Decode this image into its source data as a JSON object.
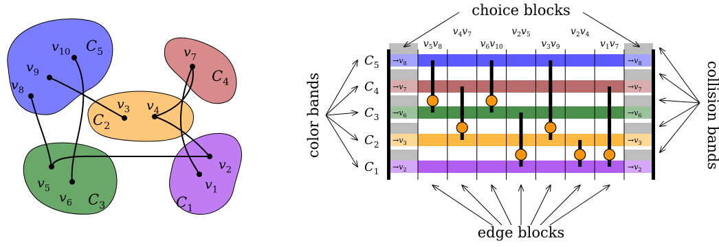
{
  "graph": {
    "clusters": [
      {
        "id": "C5",
        "label": "C",
        "sub": "5",
        "color": "#7a7dff"
      },
      {
        "id": "C4",
        "label": "C",
        "sub": "4",
        "color": "#d98a8a"
      },
      {
        "id": "C2",
        "label": "C",
        "sub": "2",
        "color": "#fdc77a"
      },
      {
        "id": "C3",
        "label": "C",
        "sub": "3",
        "color": "#6aa86a"
      },
      {
        "id": "C1",
        "label": "C",
        "sub": "1",
        "color": "#c07cf2"
      }
    ],
    "vertices": [
      {
        "id": "v10",
        "label": "v",
        "sub": "10"
      },
      {
        "id": "v9",
        "label": "v",
        "sub": "9"
      },
      {
        "id": "v8",
        "label": "v",
        "sub": "8"
      },
      {
        "id": "v7",
        "label": "v",
        "sub": "7"
      },
      {
        "id": "v3",
        "label": "v",
        "sub": "3"
      },
      {
        "id": "v4",
        "label": "v",
        "sub": "4"
      },
      {
        "id": "v2",
        "label": "v",
        "sub": "2"
      },
      {
        "id": "v1",
        "label": "v",
        "sub": "1"
      },
      {
        "id": "v5",
        "label": "v",
        "sub": "5"
      },
      {
        "id": "v6",
        "label": "v",
        "sub": "6"
      }
    ],
    "edges": [
      [
        "v8",
        "v5"
      ],
      [
        "v9",
        "v3"
      ],
      [
        "v10",
        "v6"
      ],
      [
        "v7",
        "v4"
      ],
      [
        "v7",
        "v1"
      ],
      [
        "v4",
        "v2"
      ],
      [
        "v5",
        "v2"
      ]
    ]
  },
  "layout": {
    "top_annotation": "choice blocks",
    "bottom_annotation": "edge blocks",
    "left_annotation": "color bands",
    "right_annotation": "collision bands",
    "row_labels": [
      {
        "label": "C",
        "sub": "5"
      },
      {
        "label": "C",
        "sub": "4"
      },
      {
        "label": "C",
        "sub": "3"
      },
      {
        "label": "C",
        "sub": "2"
      },
      {
        "label": "C",
        "sub": "1"
      }
    ],
    "band_colors": [
      "#5a5aff",
      "#b96a6a",
      "#4a904a",
      "#fbb944",
      "#b15ef0"
    ],
    "end_labels_left": [
      "→v8",
      "→v7",
      "→v6",
      "→v3",
      "→v2"
    ],
    "end_labels_right": [
      "→v8",
      "→v7",
      "→v6",
      "→v3",
      "→v2"
    ],
    "edge_block_labels": [
      {
        "a": "5",
        "b": "8"
      },
      {
        "a": "4",
        "b": "7"
      },
      {
        "a": "6",
        "b": "10"
      },
      {
        "a": "2",
        "b": "5"
      },
      {
        "a": "3",
        "b": "9"
      },
      {
        "a": "2",
        "b": "4"
      },
      {
        "a": "1",
        "b": "7"
      }
    ],
    "node_color": "#f7960a"
  }
}
